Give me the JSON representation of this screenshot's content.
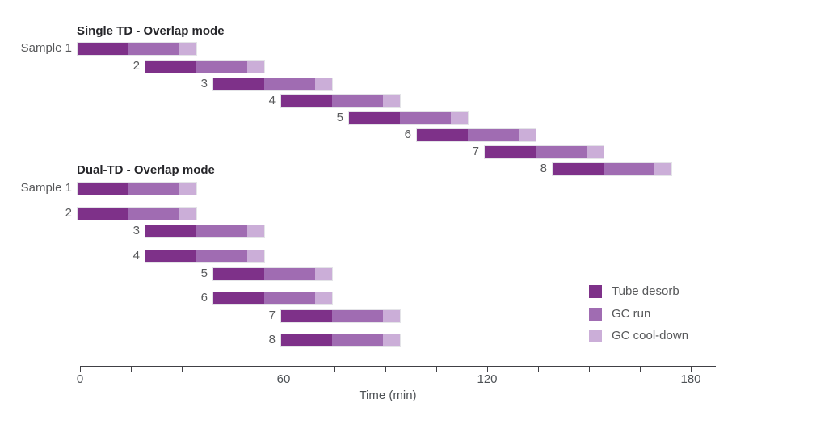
{
  "chart_data": {
    "type": "bar",
    "variant": "gantt",
    "xlabel": "Time (min)",
    "x_ticks": [
      0,
      60,
      120,
      180
    ],
    "x_minor_tick_step": 15,
    "xlim": [
      0,
      188
    ],
    "grid": false,
    "legend_position": "bottom-right",
    "time_unit": "min",
    "segments": [
      {
        "name": "Tube desorb",
        "color": "#7e3189"
      },
      {
        "name": "GC run",
        "color": "#a06cb2"
      },
      {
        "name": "GC cool-down",
        "color": "#cbaed8"
      }
    ],
    "groups": [
      {
        "title": "Single TD - Overlap mode",
        "rows": [
          {
            "label": "Sample 1",
            "start": 0,
            "durations": [
              15,
              15,
              5
            ]
          },
          {
            "label": "2",
            "start": 20,
            "durations": [
              15,
              15,
              5
            ]
          },
          {
            "label": "3",
            "start": 40,
            "durations": [
              15,
              15,
              5
            ]
          },
          {
            "label": "4",
            "start": 60,
            "durations": [
              15,
              15,
              5
            ]
          },
          {
            "label": "5",
            "start": 80,
            "durations": [
              15,
              15,
              5
            ]
          },
          {
            "label": "6",
            "start": 100,
            "durations": [
              15,
              15,
              5
            ]
          },
          {
            "label": "7",
            "start": 120,
            "durations": [
              15,
              15,
              5
            ]
          },
          {
            "label": "8",
            "start": 140,
            "durations": [
              15,
              15,
              5
            ]
          }
        ]
      },
      {
        "title": "Dual-TD - Overlap mode",
        "rows": [
          {
            "label": "Sample 1",
            "start": 0,
            "durations": [
              15,
              15,
              5
            ]
          },
          {
            "label": "2",
            "start": 0,
            "durations": [
              15,
              15,
              5
            ]
          },
          {
            "label": "3",
            "start": 20,
            "durations": [
              15,
              15,
              5
            ]
          },
          {
            "label": "4",
            "start": 20,
            "durations": [
              15,
              15,
              5
            ]
          },
          {
            "label": "5",
            "start": 40,
            "durations": [
              15,
              15,
              5
            ]
          },
          {
            "label": "6",
            "start": 40,
            "durations": [
              15,
              15,
              5
            ]
          },
          {
            "label": "7",
            "start": 60,
            "durations": [
              15,
              15,
              5
            ]
          },
          {
            "label": "8",
            "start": 60,
            "durations": [
              15,
              15,
              5
            ]
          }
        ]
      }
    ]
  }
}
